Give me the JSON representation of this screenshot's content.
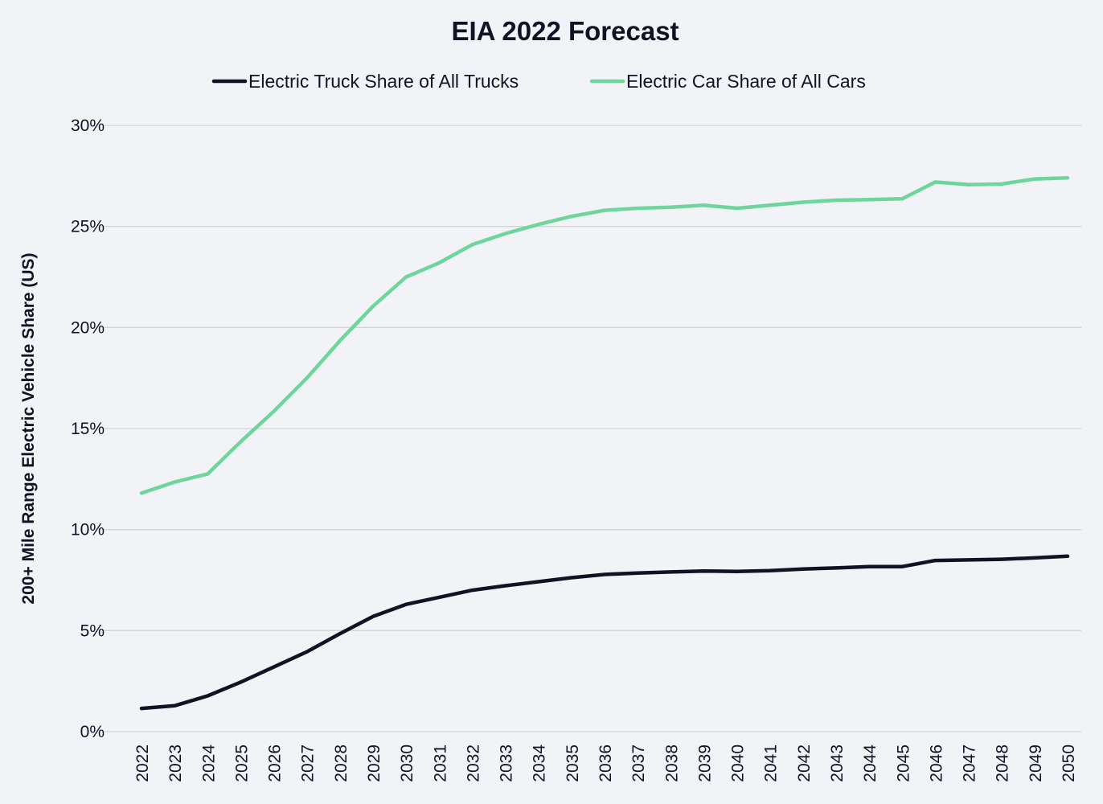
{
  "chart_data": {
    "type": "line",
    "title": "EIA 2022 Forecast",
    "xlabel": "",
    "ylabel": "200+ Mile Range Electric Vehicle Share (US)",
    "ylim": [
      0,
      30
    ],
    "yticks": [
      "0%",
      "5%",
      "10%",
      "15%",
      "20%",
      "25%",
      "30%"
    ],
    "ytick_values": [
      0,
      5,
      10,
      15,
      20,
      25,
      30
    ],
    "grid": true,
    "legend_position": "top-center",
    "categories": [
      "2022",
      "2023",
      "2024",
      "2025",
      "2026",
      "2027",
      "2028",
      "2029",
      "2030",
      "2031",
      "2032",
      "2033",
      "2034",
      "2035",
      "2036",
      "2037",
      "2038",
      "2039",
      "2040",
      "2041",
      "2042",
      "2043",
      "2044",
      "2045",
      "2046",
      "2047",
      "2048",
      "2049",
      "2050"
    ],
    "series": [
      {
        "name": "Electric Truck Share of All Trucks",
        "color": "#121225",
        "values": [
          1.15,
          1.28,
          1.77,
          2.45,
          3.2,
          3.95,
          4.85,
          5.7,
          6.3,
          6.65,
          7.0,
          7.22,
          7.42,
          7.62,
          7.78,
          7.85,
          7.9,
          7.95,
          7.93,
          7.97,
          8.05,
          8.1,
          8.17,
          8.17,
          8.47,
          8.5,
          8.53,
          8.6,
          8.68
        ]
      },
      {
        "name": "Electric Car Share of All Cars",
        "color": "#6fd69b",
        "values": [
          11.8,
          12.35,
          12.75,
          14.35,
          15.85,
          17.5,
          19.35,
          21.05,
          22.5,
          23.2,
          24.1,
          24.65,
          25.1,
          25.5,
          25.8,
          25.9,
          25.95,
          26.05,
          25.9,
          26.05,
          26.2,
          26.3,
          26.33,
          26.37,
          27.2,
          27.07,
          27.1,
          27.35,
          27.4
        ]
      }
    ]
  }
}
